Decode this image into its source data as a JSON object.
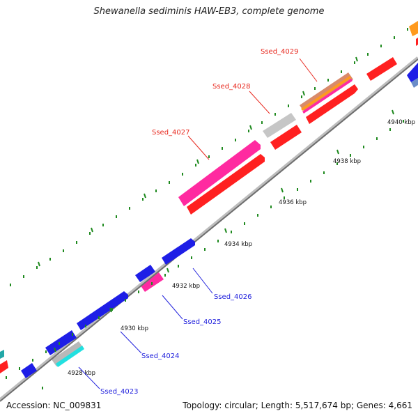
{
  "title": "Shewanella sediminis HAW-EB3, complete genome",
  "footer": {
    "accession_label": "Accession:",
    "accession": "NC_009831",
    "topology_label": "Topology:",
    "topology": "circular",
    "length_label": "Length:",
    "length": "5,517,674 bp",
    "genes_label": "Genes:",
    "genes": "4,661"
  },
  "colors": {
    "forward_label": "#e8281e",
    "reverse_label": "#2222dd",
    "backbone": "#888888",
    "tick": "#1f8a1f"
  },
  "kbp_labels": [
    "4928 kbp",
    "4930 kbp",
    "4932 kbp",
    "4934 kbp",
    "4936 kbp",
    "4938 kbp",
    "4940 kbp"
  ],
  "gene_labels": {
    "Ssed_4023": "Ssed_4023",
    "Ssed_4024": "Ssed_4024",
    "Ssed_4025": "Ssed_4025",
    "Ssed_4026": "Ssed_4026",
    "Ssed_4027": "Ssed_4027",
    "Ssed_4028": "Ssed_4028",
    "Ssed_4029": "Ssed_4029"
  }
}
